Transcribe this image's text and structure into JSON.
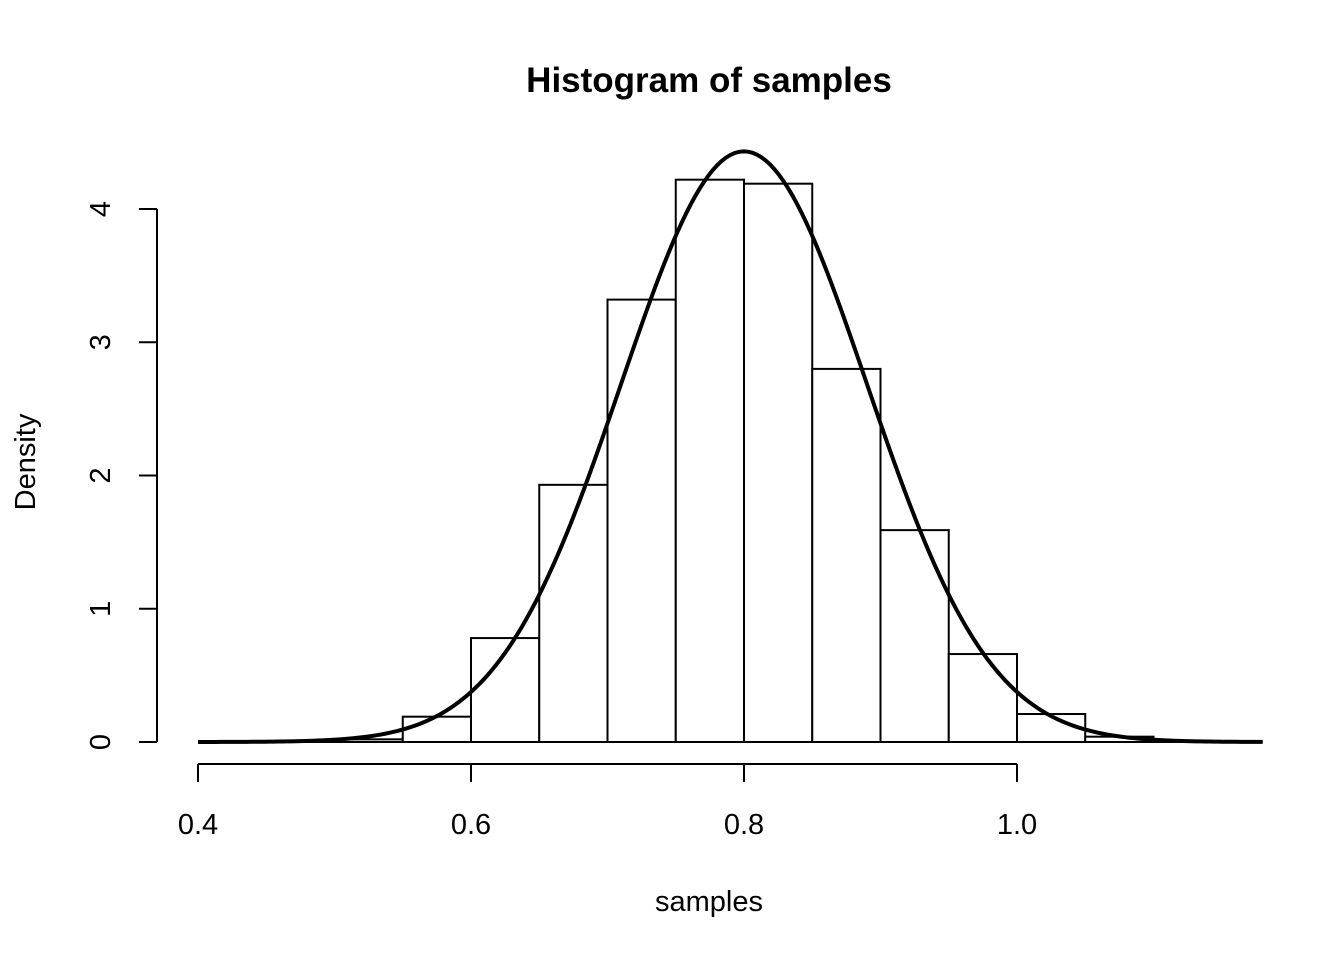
{
  "chart_data": {
    "type": "bar",
    "title": "Histogram of samples",
    "xlabel": "samples",
    "ylabel": "Density",
    "xlim": [
      0.4,
      1.18
    ],
    "ylim": [
      0,
      4.4
    ],
    "x_axis_range": [
      0.4,
      1.0
    ],
    "x_ticks": [
      0.4,
      0.6,
      0.8,
      1.0
    ],
    "x_tick_labels": [
      "0.4",
      "0.6",
      "0.8",
      "1.0"
    ],
    "y_ticks": [
      0,
      1,
      2,
      3,
      4
    ],
    "y_tick_labels": [
      "0",
      "1",
      "2",
      "3",
      "4"
    ],
    "grid": false,
    "bins": [
      {
        "x0": 0.5,
        "x1": 0.55,
        "density": 0.02
      },
      {
        "x0": 0.55,
        "x1": 0.6,
        "density": 0.19
      },
      {
        "x0": 0.6,
        "x1": 0.65,
        "density": 0.78
      },
      {
        "x0": 0.65,
        "x1": 0.7,
        "density": 1.93
      },
      {
        "x0": 0.7,
        "x1": 0.75,
        "density": 3.32
      },
      {
        "x0": 0.75,
        "x1": 0.8,
        "density": 4.22
      },
      {
        "x0": 0.8,
        "x1": 0.85,
        "density": 4.19
      },
      {
        "x0": 0.85,
        "x1": 0.9,
        "density": 2.8
      },
      {
        "x0": 0.9,
        "x1": 0.95,
        "density": 1.59
      },
      {
        "x0": 0.95,
        "x1": 1.0,
        "density": 0.66
      },
      {
        "x0": 1.0,
        "x1": 1.05,
        "density": 0.21
      },
      {
        "x0": 1.05,
        "x1": 1.1,
        "density": 0.04
      }
    ],
    "curve": {
      "type": "normal-density",
      "mean": 0.8,
      "sd": 0.09,
      "x_range": [
        0.4,
        1.18
      ]
    }
  }
}
